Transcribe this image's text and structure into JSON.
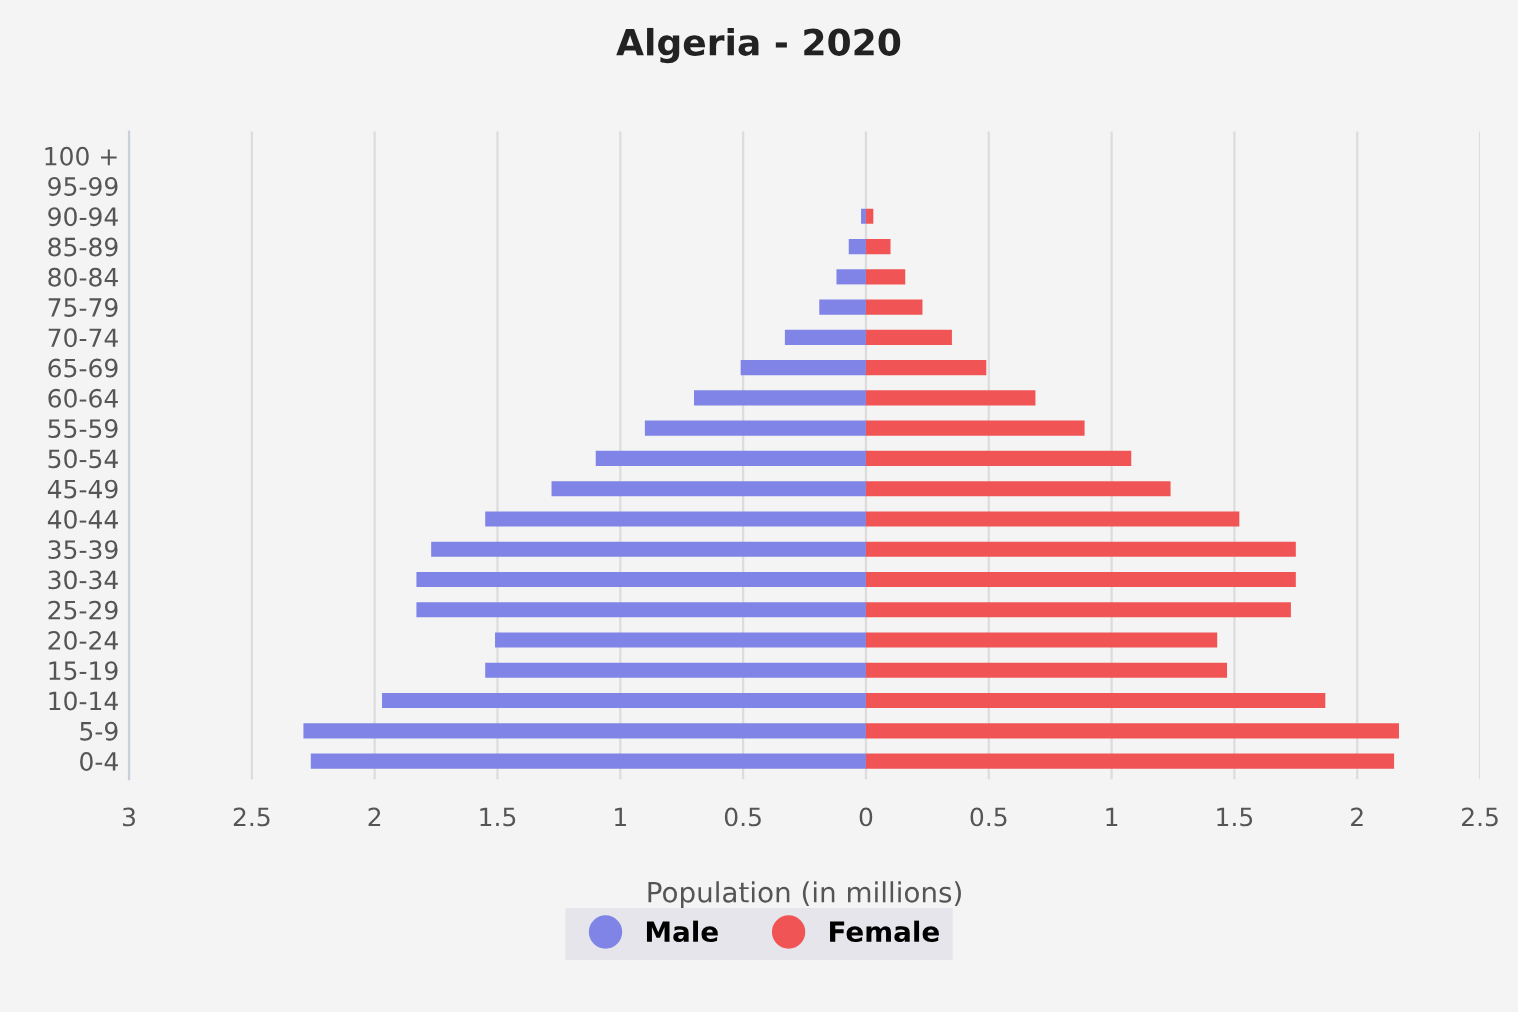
{
  "chart_data": {
    "type": "bar",
    "orientation": "horizontal",
    "title": "Algeria - 2020",
    "xlabel": "Population (in millions)",
    "categories": [
      "100 +",
      "95-99",
      "90-94",
      "85-89",
      "80-84",
      "75-79",
      "70-74",
      "65-69",
      "60-64",
      "55-59",
      "50-54",
      "45-49",
      "40-44",
      "35-39",
      "30-34",
      "25-29",
      "20-24",
      "15-19",
      "10-14",
      "5-9",
      "0-4"
    ],
    "series": [
      {
        "name": "Male",
        "color": "#7f84e6",
        "values": [
          0,
          0,
          -0.02,
          -0.07,
          -0.12,
          -0.19,
          -0.33,
          -0.51,
          -0.7,
          -0.9,
          -1.1,
          -1.28,
          -1.55,
          -1.77,
          -1.83,
          -1.83,
          -1.51,
          -1.55,
          -1.97,
          -2.29,
          -2.26
        ]
      },
      {
        "name": "Female",
        "color": "#f05454",
        "values": [
          0,
          0,
          0.03,
          0.1,
          0.16,
          0.23,
          0.35,
          0.49,
          0.69,
          0.89,
          1.08,
          1.24,
          1.52,
          1.75,
          1.75,
          1.73,
          1.43,
          1.47,
          1.87,
          2.17,
          2.15
        ]
      }
    ],
    "xlim": [
      -3,
      2.5
    ],
    "xticks": [
      {
        "value": -3,
        "label": "3"
      },
      {
        "value": -2.5,
        "label": "2.5"
      },
      {
        "value": -2,
        "label": "2"
      },
      {
        "value": -1.5,
        "label": "1.5"
      },
      {
        "value": -1,
        "label": "1"
      },
      {
        "value": -0.5,
        "label": "0.5"
      },
      0,
      0.5,
      1,
      1.5,
      2,
      2.5
    ],
    "stacked": true,
    "grid": "x",
    "legend": "bottom",
    "marker": "circle"
  }
}
